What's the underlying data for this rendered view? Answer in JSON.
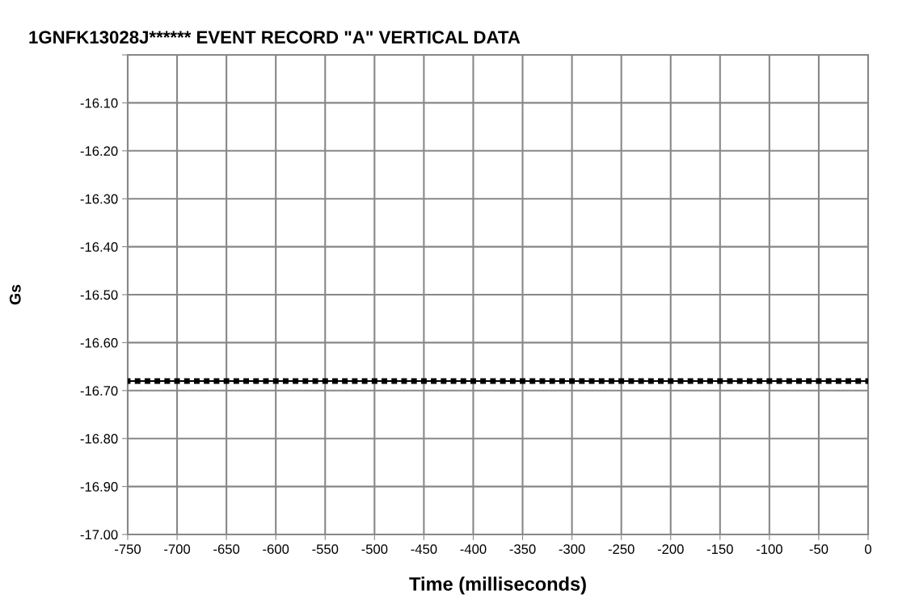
{
  "chart_data": {
    "type": "line",
    "title": "1GNFK13028J****** EVENT RECORD \"A\" VERTICAL DATA",
    "xlabel": "Time (milliseconds)",
    "ylabel": "Gs",
    "x": [
      -750,
      -740,
      -730,
      -720,
      -710,
      -700,
      -690,
      -680,
      -670,
      -660,
      -650,
      -640,
      -630,
      -620,
      -610,
      -600,
      -590,
      -580,
      -570,
      -560,
      -550,
      -540,
      -530,
      -520,
      -510,
      -500,
      -490,
      -480,
      -470,
      -460,
      -450,
      -440,
      -430,
      -420,
      -410,
      -400,
      -390,
      -380,
      -370,
      -360,
      -350,
      -340,
      -330,
      -320,
      -310,
      -300,
      -290,
      -280,
      -270,
      -260,
      -250,
      -240,
      -230,
      -220,
      -210,
      -200,
      -190,
      -180,
      -170,
      -160,
      -150,
      -140,
      -130,
      -120,
      -110,
      -100,
      -90,
      -80,
      -70,
      -60,
      -50,
      -40,
      -30,
      -20,
      -10,
      0
    ],
    "series": [
      {
        "color": "#000000",
        "values": [
          -16.68,
          -16.68,
          -16.68,
          -16.68,
          -16.68,
          -16.68,
          -16.68,
          -16.68,
          -16.68,
          -16.68,
          -16.68,
          -16.68,
          -16.68,
          -16.68,
          -16.68,
          -16.68,
          -16.68,
          -16.68,
          -16.68,
          -16.68,
          -16.68,
          -16.68,
          -16.68,
          -16.68,
          -16.68,
          -16.68,
          -16.68,
          -16.68,
          -16.68,
          -16.68,
          -16.68,
          -16.68,
          -16.68,
          -16.68,
          -16.68,
          -16.68,
          -16.68,
          -16.68,
          -16.68,
          -16.68,
          -16.68,
          -16.68,
          -16.68,
          -16.68,
          -16.68,
          -16.68,
          -16.68,
          -16.68,
          -16.68,
          -16.68,
          -16.68,
          -16.68,
          -16.68,
          -16.68,
          -16.68,
          -16.68,
          -16.68,
          -16.68,
          -16.68,
          -16.68,
          -16.68,
          -16.68,
          -16.68,
          -16.68,
          -16.68,
          -16.68,
          -16.68,
          -16.68,
          -16.68,
          -16.68,
          -16.68,
          -16.68,
          -16.68,
          -16.68,
          -16.68,
          -16.68
        ]
      }
    ],
    "xlim": [
      -750,
      0
    ],
    "xticks": [
      -750,
      -700,
      -650,
      -600,
      -550,
      -500,
      -450,
      -400,
      -350,
      -300,
      -250,
      -200,
      -150,
      -100,
      -50,
      0
    ],
    "ylim": [
      -17.0,
      -16.0
    ],
    "yticks": [
      {
        "value": -17.0,
        "label": "-17.00"
      },
      {
        "value": -16.9,
        "label": "-16.90"
      },
      {
        "value": -16.8,
        "label": "-16.80"
      },
      {
        "value": -16.7,
        "label": "-16.70"
      },
      {
        "value": -16.6,
        "label": "-16.60"
      },
      {
        "value": -16.5,
        "label": "-16.50"
      },
      {
        "value": -16.4,
        "label": "-16.40"
      },
      {
        "value": -16.3,
        "label": "-16.30"
      },
      {
        "value": -16.2,
        "label": "-16.20"
      },
      {
        "value": -16.1,
        "label": "-16.10"
      },
      {
        "value": -16.0,
        "label": null
      }
    ],
    "grid": true,
    "marker": "square",
    "line_style": "solid",
    "legend": false
  }
}
